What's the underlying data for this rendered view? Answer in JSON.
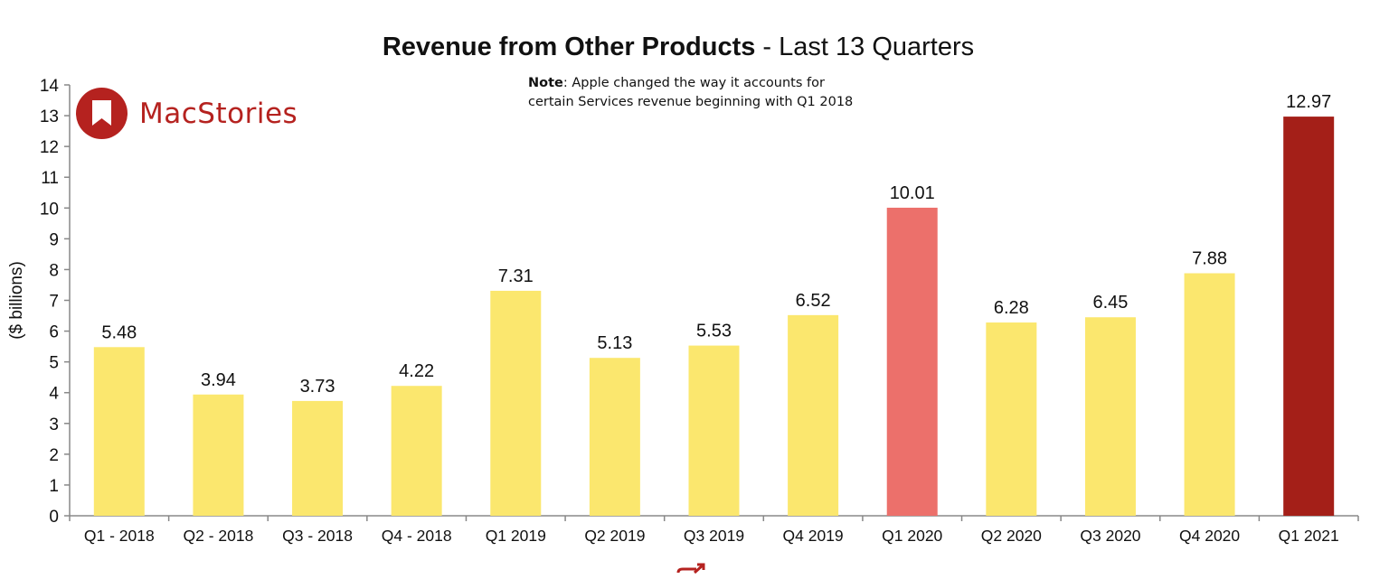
{
  "title": {
    "bold": "Revenue from Other Products",
    "rest": " - Last 13 Quarters"
  },
  "note": {
    "label": "Note",
    "line1": ": Apple changed the way it accounts for",
    "line2": "certain Services revenue beginning with Q1 2018"
  },
  "logo": {
    "text": "MacStories",
    "icon": "bookmark-icon",
    "color": "#b5221f"
  },
  "expand_icon": "expand-arrow-icon",
  "colors": {
    "default": "#fbe76e",
    "highlight_prior": "#ec706b",
    "latest": "#a41f18",
    "axis": "#888888"
  },
  "chart_data": {
    "type": "bar",
    "title": "Revenue from Other Products - Last 13 Quarters",
    "xlabel": "",
    "ylabel": "($ billions)",
    "ylim": [
      0,
      14
    ],
    "yticks": [
      0,
      1,
      2,
      3,
      4,
      5,
      6,
      7,
      8,
      9,
      10,
      11,
      12,
      13,
      14
    ],
    "grid": false,
    "categories": [
      "Q1 - 2018",
      "Q2 - 2018",
      "Q3 - 2018",
      "Q4 - 2018",
      "Q1 2019",
      "Q2 2019",
      "Q3 2019",
      "Q4 2019",
      "Q1 2020",
      "Q2 2020",
      "Q3 2020",
      "Q4 2020",
      "Q1 2021"
    ],
    "values": [
      5.48,
      3.94,
      3.73,
      4.22,
      7.31,
      5.13,
      5.53,
      6.52,
      10.01,
      6.28,
      6.45,
      7.88,
      12.97
    ],
    "labels": [
      "5.48",
      "3.94",
      "3.73",
      "4.22",
      "7.31",
      "5.13",
      "5.53",
      "6.52",
      "10.01",
      "6.28",
      "6.45",
      "7.88",
      "12.97"
    ],
    "bar_colors": [
      "#fbe76e",
      "#fbe76e",
      "#fbe76e",
      "#fbe76e",
      "#fbe76e",
      "#fbe76e",
      "#fbe76e",
      "#fbe76e",
      "#ec706b",
      "#fbe76e",
      "#fbe76e",
      "#fbe76e",
      "#a41f18"
    ]
  }
}
